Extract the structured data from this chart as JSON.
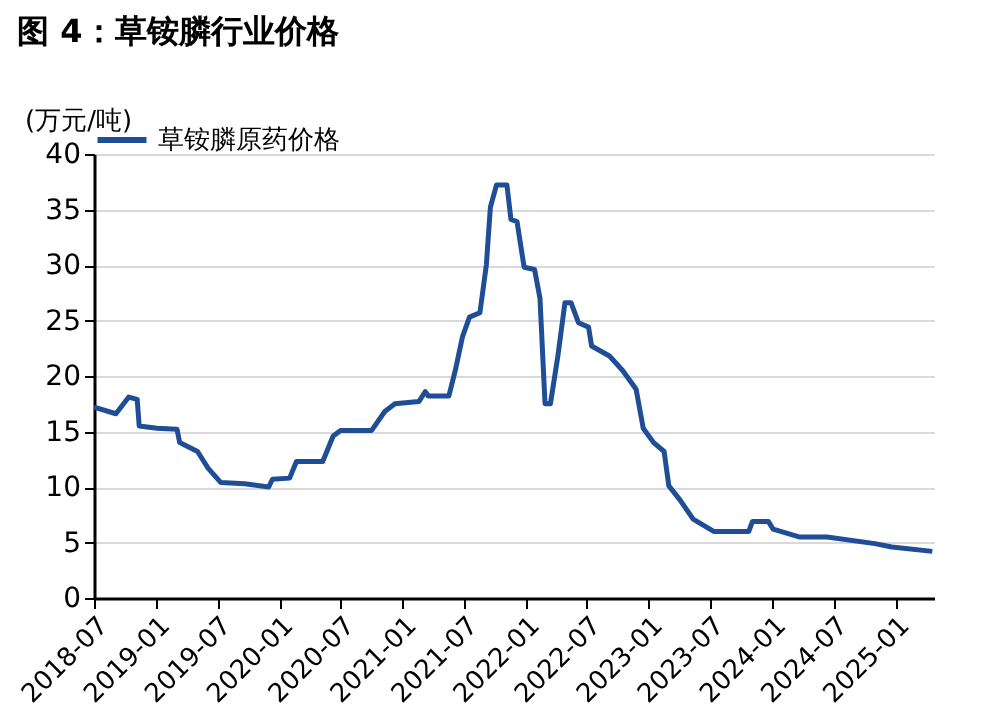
{
  "chart_data": {
    "type": "line",
    "title": "图 4：草铵膦行业价格",
    "ylabel": "(万元/吨)",
    "x": [
      "2018-07-01",
      "2018-09-04",
      "2018-10-12",
      "2018-11-06",
      "2018-11-12",
      "2019-01-04",
      "2019-03-04",
      "2019-03-12",
      "2019-05-04",
      "2019-06-04",
      "2019-07-12",
      "2019-09-21",
      "2019-12-01",
      "2019-12-12",
      "2020-02-01",
      "2020-02-21",
      "2020-05-09",
      "2020-06-09",
      "2020-07-01",
      "2020-10-01",
      "2020-11-09",
      "2020-12-09",
      "2021-02-18",
      "2021-03-09",
      "2021-03-18",
      "2021-05-18",
      "2021-06-06",
      "2021-06-27",
      "2021-07-18",
      "2021-08-18",
      "2021-09-06",
      "2021-09-18",
      "2021-10-06",
      "2021-11-06",
      "2021-11-18",
      "2021-12-06",
      "2021-12-27",
      "2022-01-27",
      "2022-02-12",
      "2022-02-27",
      "2022-03-15",
      "2022-04-06",
      "2022-04-27",
      "2022-05-15",
      "2022-06-06",
      "2022-07-06",
      "2022-07-15",
      "2022-09-06",
      "2022-10-15",
      "2022-11-24",
      "2022-12-15",
      "2023-01-15",
      "2023-02-15",
      "2023-03-01",
      "2023-04-04",
      "2023-05-12",
      "2023-07-12",
      "2023-10-24",
      "2023-11-04",
      "2023-12-21",
      "2024-01-04",
      "2024-03-21",
      "2024-06-12",
      "2024-11-01",
      "2024-12-21",
      "2025-04-20"
    ],
    "series": [
      {
        "name": "草铵膦原药价格",
        "color": "#1f4e96",
        "values": [
          17.2,
          16.6,
          18.1,
          17.9,
          15.5,
          15.3,
          15.2,
          14.0,
          13.2,
          11.7,
          10.4,
          10.3,
          10.0,
          10.7,
          10.8,
          12.3,
          12.3,
          14.6,
          15.1,
          15.1,
          16.8,
          17.5,
          17.7,
          18.6,
          18.2,
          18.2,
          20.5,
          23.5,
          25.3,
          25.7,
          30.0,
          35.2,
          37.2,
          37.2,
          34.1,
          33.9,
          29.8,
          29.6,
          27.0,
          17.5,
          17.5,
          21.8,
          26.6,
          26.6,
          24.8,
          24.4,
          22.7,
          21.8,
          20.5,
          18.8,
          15.3,
          14.0,
          13.2,
          10.1,
          8.8,
          7.1,
          6.0,
          6.0,
          6.9,
          6.9,
          6.2,
          5.5,
          5.5,
          4.9,
          4.6,
          4.2
        ]
      }
    ],
    "xlim": [
      "2018-07-01",
      "2025-04-25"
    ],
    "xticks": [
      "2018-07",
      "2019-01",
      "2019-07",
      "2020-01",
      "2020-07",
      "2021-01",
      "2021-07",
      "2022-01",
      "2022-07",
      "2023-01",
      "2023-07",
      "2024-01",
      "2024-07",
      "2025-01"
    ],
    "ylim": [
      0,
      40
    ],
    "yticks": [
      0,
      5,
      10,
      15,
      20,
      25,
      30,
      35,
      40
    ],
    "grid": "y",
    "legend": "top",
    "marker": "none",
    "line_style": "solid"
  }
}
